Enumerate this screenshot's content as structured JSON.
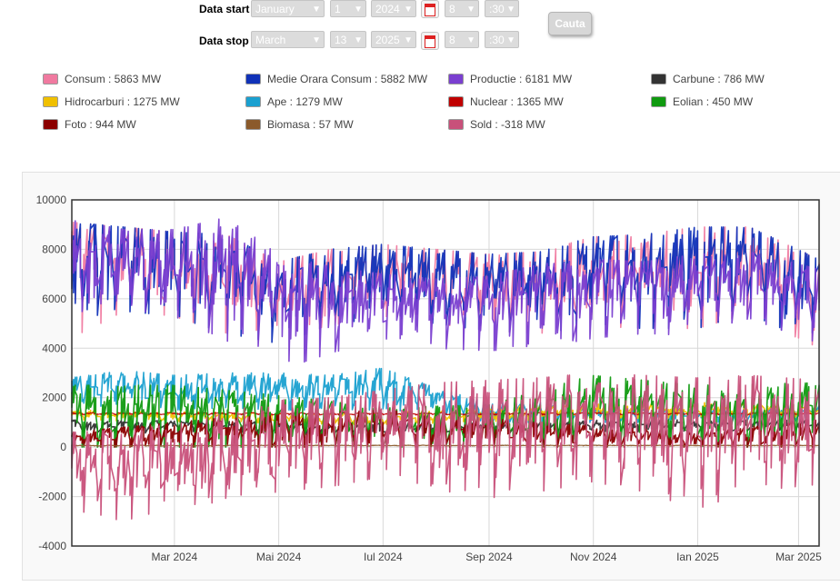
{
  "form": {
    "start_label": "Data start",
    "stop_label": "Data stop",
    "start": {
      "month": "January",
      "day": "1",
      "year": "2024",
      "hour": "8",
      "minute": ":30"
    },
    "stop": {
      "month": "March",
      "day": "13",
      "year": "2025",
      "hour": "8",
      "minute": ":30"
    },
    "search_button": "Cauta",
    "calendar_icon": "calendar-icon"
  },
  "legend": [
    {
      "text": "Consum : 5863 MW",
      "color": "#f07aa0"
    },
    {
      "text": "Medie Orara Consum : 5882 MW",
      "color": "#1032b8"
    },
    {
      "text": "Productie : 6181 MW",
      "color": "#7a3fd0"
    },
    {
      "text": "Carbune : 786 MW",
      "color": "#333333"
    },
    {
      "text": "Hidrocarburi : 1275 MW",
      "color": "#f0c000"
    },
    {
      "text": "Ape : 1279 MW",
      "color": "#1aa0d0"
    },
    {
      "text": "Nuclear : 1365 MW",
      "color": "#c00000"
    },
    {
      "text": "Eolian : 450 MW",
      "color": "#109a10"
    },
    {
      "text": "Foto : 944 MW",
      "color": "#8b0000"
    },
    {
      "text": "Biomasa : 57 MW",
      "color": "#8b5a2b"
    },
    {
      "text": "Sold : -318 MW",
      "color": "#c8507a"
    }
  ],
  "chart_data": {
    "type": "line",
    "title": "",
    "xlabel": "",
    "ylabel": "",
    "ylim": [
      -4000,
      10000
    ],
    "yticks": [
      "10000",
      "8000",
      "6000",
      "4000",
      "2000",
      "0",
      "-2000",
      "-4000"
    ],
    "xlim": [
      "2024-01-01",
      "2025-03-13"
    ],
    "xticks": [
      {
        "date": "2024-03-01",
        "label": "Mar 2024"
      },
      {
        "date": "2024-05-01",
        "label": "Mai 2024"
      },
      {
        "date": "2024-07-01",
        "label": "Iul 2024"
      },
      {
        "date": "2024-09-01",
        "label": "Sep 2024"
      },
      {
        "date": "2024-11-01",
        "label": "Nov 2024"
      },
      {
        "date": "2025-01-01",
        "label": "Ian 2025"
      },
      {
        "date": "2025-03-01",
        "label": "Mar 2025"
      }
    ],
    "grid": true,
    "series": [
      {
        "name": "Consum",
        "color": "#f07aa0",
        "x": [
          "2024-01-01",
          "2024-02-01",
          "2024-03-01",
          "2024-04-01",
          "2024-05-01",
          "2024-06-01",
          "2024-07-01",
          "2024-08-01",
          "2024-09-01",
          "2024-10-01",
          "2024-11-01",
          "2024-12-01",
          "2025-01-01",
          "2025-02-01",
          "2025-03-13"
        ],
        "min": [
          4400,
          5500,
          5300,
          4600,
          4200,
          4900,
          5300,
          5000,
          4700,
          4600,
          4900,
          4800,
          4800,
          5400,
          4000
        ],
        "max": [
          9100,
          8900,
          8700,
          8600,
          7500,
          8000,
          8200,
          8000,
          7800,
          7900,
          8500,
          8600,
          8900,
          8900,
          7600
        ]
      },
      {
        "name": "Medie Orara Consum",
        "color": "#1032b8",
        "x": [
          "2024-01-01",
          "2024-02-01",
          "2024-03-01",
          "2024-04-01",
          "2024-05-01",
          "2024-06-01",
          "2024-07-01",
          "2024-08-01",
          "2024-09-01",
          "2024-10-01",
          "2024-11-01",
          "2024-12-01",
          "2025-01-01",
          "2025-02-01",
          "2025-03-13"
        ],
        "min": [
          4400,
          5500,
          5300,
          4600,
          4200,
          4900,
          5300,
          5000,
          4700,
          4600,
          4900,
          4800,
          4800,
          5400,
          4000
        ],
        "max": [
          9100,
          8900,
          8700,
          8600,
          7500,
          8000,
          8200,
          8000,
          7800,
          7900,
          8500,
          8600,
          8900,
          8900,
          7600
        ]
      },
      {
        "name": "Productie",
        "color": "#7a3fd0",
        "x": [
          "2024-01-01",
          "2024-02-01",
          "2024-03-01",
          "2024-04-01",
          "2024-05-01",
          "2024-06-01",
          "2024-07-01",
          "2024-08-01",
          "2024-09-01",
          "2024-10-01",
          "2024-11-01",
          "2024-12-01",
          "2025-01-01",
          "2025-02-01",
          "2025-03-13"
        ],
        "min": [
          4500,
          5600,
          5300,
          4300,
          3100,
          3800,
          4400,
          4000,
          3900,
          4000,
          4400,
          4600,
          4500,
          5200,
          4200
        ],
        "max": [
          9200,
          8800,
          8800,
          9300,
          7800,
          7300,
          7000,
          6800,
          6900,
          7400,
          7600,
          7500,
          7800,
          7900,
          7200
        ]
      },
      {
        "name": "Ape",
        "color": "#1aa0d0",
        "x": [
          "2024-01-01",
          "2024-02-01",
          "2024-03-01",
          "2024-04-01",
          "2024-05-01",
          "2024-06-01",
          "2024-07-01",
          "2024-08-01",
          "2024-09-01",
          "2024-10-01",
          "2024-11-01",
          "2024-12-01",
          "2025-01-01",
          "2025-02-01",
          "2025-03-13"
        ],
        "min": [
          1600,
          1700,
          1500,
          1600,
          1500,
          1500,
          1500,
          1400,
          1000,
          1000,
          1000,
          1000,
          1000,
          1000,
          1000
        ],
        "max": [
          2800,
          3100,
          2900,
          3000,
          3000,
          2900,
          3200,
          2400,
          1800,
          1800,
          1600,
          1600,
          1600,
          1600,
          1700
        ]
      },
      {
        "name": "Hidrocarburi",
        "color": "#f0c000",
        "x": [
          "2024-01-01",
          "2024-04-01",
          "2024-07-01",
          "2024-10-01",
          "2025-01-01",
          "2025-03-13"
        ],
        "min": [
          1100,
          1000,
          900,
          1100,
          1200,
          1200
        ],
        "max": [
          1500,
          1400,
          1400,
          1700,
          1800,
          1700
        ]
      },
      {
        "name": "Nuclear",
        "color": "#c00000",
        "x": [
          "2024-01-01",
          "2024-04-01",
          "2024-07-01",
          "2024-10-01",
          "2025-01-01",
          "2025-03-13"
        ],
        "min": [
          1300,
          1300,
          1300,
          1300,
          1300,
          1300
        ],
        "max": [
          1400,
          1400,
          1400,
          1400,
          1400,
          1400
        ]
      },
      {
        "name": "Eolian",
        "color": "#109a10",
        "x": [
          "2024-01-01",
          "2024-03-01",
          "2024-05-01",
          "2024-07-01",
          "2024-09-01",
          "2024-11-01",
          "2025-01-01",
          "2025-03-13"
        ],
        "min": [
          0,
          0,
          0,
          0,
          0,
          0,
          0,
          0
        ],
        "max": [
          2500,
          2500,
          2100,
          1600,
          1700,
          2900,
          2500,
          2600
        ]
      },
      {
        "name": "Carbune",
        "color": "#333333",
        "x": [
          "2024-01-01",
          "2024-06-01",
          "2024-12-01",
          "2025-03-13"
        ],
        "min": [
          600,
          500,
          600,
          700
        ],
        "max": [
          1100,
          1000,
          1100,
          1100
        ]
      },
      {
        "name": "Foto",
        "color": "#8b0000",
        "x": [
          "2024-01-01",
          "2024-04-01",
          "2024-07-01",
          "2024-10-01",
          "2025-01-01",
          "2025-03-13"
        ],
        "min": [
          0,
          0,
          0,
          0,
          0,
          0
        ],
        "max": [
          600,
          1200,
          1500,
          1000,
          600,
          1100
        ]
      },
      {
        "name": "Biomasa",
        "color": "#8b5a2b",
        "x": [
          "2024-01-01",
          "2025-03-13"
        ],
        "min": [
          40,
          40
        ],
        "max": [
          80,
          80
        ]
      },
      {
        "name": "Sold",
        "color": "#c8507a",
        "x": [
          "2024-01-01",
          "2024-02-01",
          "2024-03-01",
          "2024-04-01",
          "2024-05-01",
          "2024-06-01",
          "2024-07-01",
          "2024-08-01",
          "2024-09-01",
          "2024-10-01",
          "2024-11-01",
          "2024-12-01",
          "2025-01-01",
          "2025-02-01",
          "2025-03-13"
        ],
        "min": [
          -2500,
          -3000,
          -2400,
          -2200,
          -1800,
          -1600,
          -1200,
          -1600,
          -2400,
          -1800,
          -1400,
          -1800,
          -2500,
          -1800,
          -1500
        ],
        "max": [
          600,
          700,
          900,
          1400,
          1900,
          2000,
          2300,
          2600,
          2700,
          2800,
          3000,
          2900,
          2800,
          2900,
          2700
        ]
      }
    ]
  }
}
